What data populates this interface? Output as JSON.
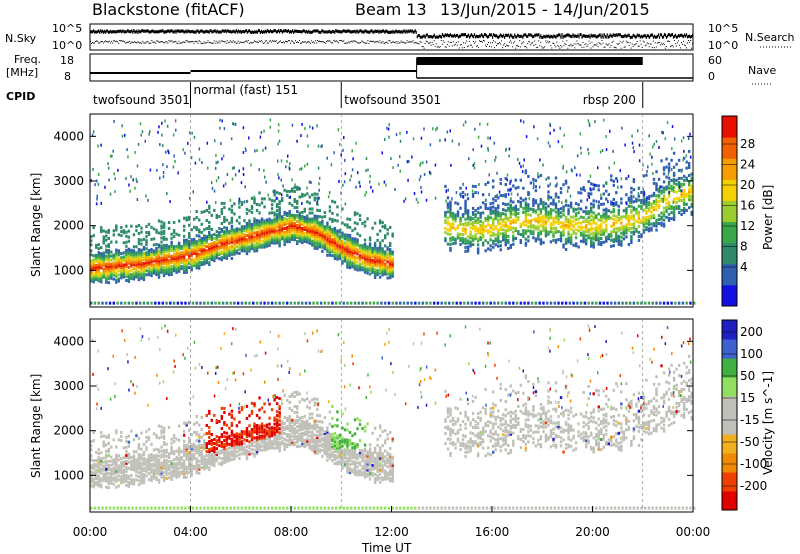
{
  "header": {
    "site": "Blackstone (fitACF)",
    "beam": "Beam 13",
    "dates": "13/Jun/2015 - 14/Jun/2015"
  },
  "summary": {
    "nsky_label": "N.Sky",
    "nsky_ticks": [
      "10^5",
      "10^0"
    ],
    "nsearch_label": "N.Search",
    "freq_label": "Freq.",
    "freq_unit": "[MHz]",
    "freq_ticks": [
      "18",
      "8"
    ],
    "nave_label": "Nave",
    "nave_ticks": [
      "60",
      "0"
    ],
    "nsearch_ticks": [
      "10^5",
      "10^0"
    ],
    "cpid_label": "CPID",
    "cpid_segments": [
      {
        "name": "twofsound",
        "id": "3501",
        "start_hr": 0,
        "end_hr": 4
      },
      {
        "name": "normal (fast)",
        "id": "151",
        "start_hr": 4,
        "end_hr": 10
      },
      {
        "name": "twofsound",
        "id": "3501",
        "start_hr": 10,
        "end_hr": 22
      },
      {
        "name": "rbsp",
        "id": "200",
        "start_hr": 22,
        "end_hr": 24
      }
    ]
  },
  "chart_data": [
    {
      "type": "heatmap",
      "panel": "power",
      "ylabel": "Slant Range [km]",
      "xlabel": "",
      "xlim_hr": [
        0,
        24
      ],
      "ylim": [
        180,
        4500
      ],
      "yticks": [
        "1000",
        "2000",
        "3000",
        "4000"
      ],
      "colorbar": {
        "label": "Power [dB]",
        "ticks": [
          "28",
          "24",
          "20",
          "16",
          "12",
          "8",
          "4"
        ],
        "min": 0,
        "max": 32,
        "colors": [
          "#1010e0",
          "#2f5fb0",
          "#2e8a6a",
          "#3aa84a",
          "#9acd32",
          "#f5d000",
          "#f59c00",
          "#f26000",
          "#e81000"
        ]
      },
      "main_echo_band": {
        "hours": [
          0,
          1,
          2,
          3,
          4,
          5,
          6,
          7,
          8,
          9,
          10,
          11,
          12,
          13,
          14,
          15,
          16,
          17,
          18,
          19,
          20,
          21,
          22,
          23,
          24
        ],
        "range_km": [
          1050,
          1100,
          1150,
          1250,
          1350,
          1550,
          1700,
          1850,
          2000,
          1850,
          1500,
          1250,
          1150,
          null,
          2000,
          1900,
          1950,
          2100,
          2100,
          2000,
          2000,
          2050,
          2200,
          2600,
          2800
        ]
      }
    },
    {
      "type": "heatmap",
      "panel": "velocity",
      "ylabel": "Slant Range [km]",
      "xlabel": "Time UT",
      "xlim_hr": [
        0,
        24
      ],
      "ylim": [
        180,
        4500
      ],
      "yticks": [
        "1000",
        "2000",
        "3000",
        "4000"
      ],
      "xticks": [
        "00:00",
        "04:00",
        "08:00",
        "12:00",
        "16:00",
        "20:00",
        "00:00"
      ],
      "colorbar": {
        "label": "Velocity [m s^-1]",
        "ticks": [
          "200",
          "100",
          "50",
          "15",
          "-15",
          "-50",
          "-100",
          "-200"
        ],
        "min": -250,
        "max": 250,
        "colors": [
          "#e00000",
          "#f04000",
          "#f08a00",
          "#f0b020",
          "#c0c0b8",
          "#c0c0b8",
          "#90e060",
          "#40b040",
          "#4060d0",
          "#2020c0"
        ]
      }
    }
  ]
}
